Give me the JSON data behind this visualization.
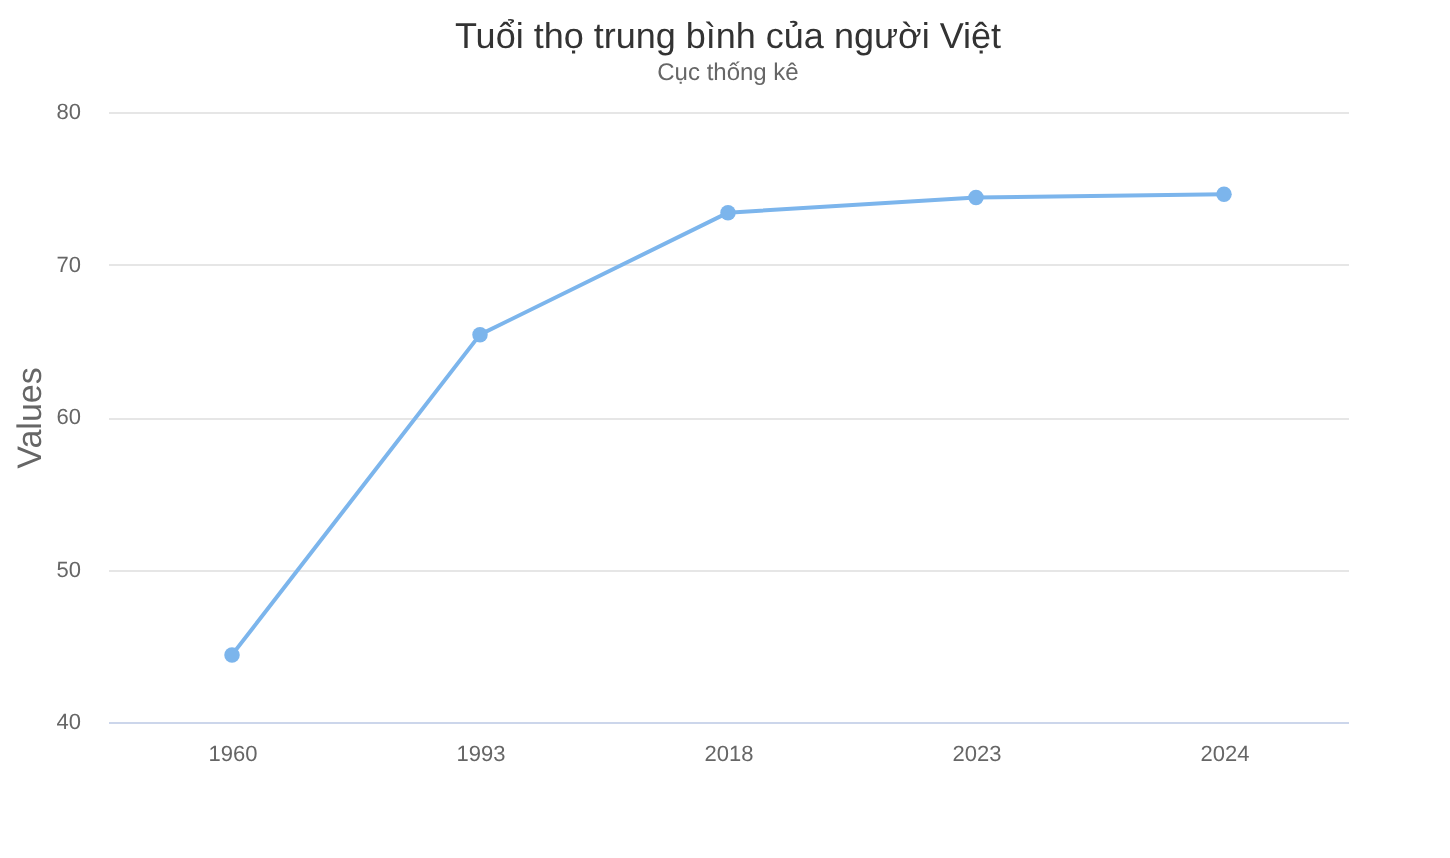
{
  "chart_data": {
    "type": "line",
    "title": "Tuổi thọ trung bình của người Việt",
    "subtitle": "Cục thống kê",
    "ylabel": "Values",
    "categories": [
      "1960",
      "1993",
      "2018",
      "2023",
      "2024"
    ],
    "series": [
      {
        "color": "#7cb5ec",
        "values": [
          44.4,
          65.4,
          73.4,
          74.4,
          74.6
        ]
      }
    ],
    "ylim": [
      40,
      80
    ],
    "yticks": [
      40,
      50,
      60,
      70,
      80
    ],
    "grid": "y",
    "marker": "circle",
    "line_style": "solid",
    "legend": false
  }
}
